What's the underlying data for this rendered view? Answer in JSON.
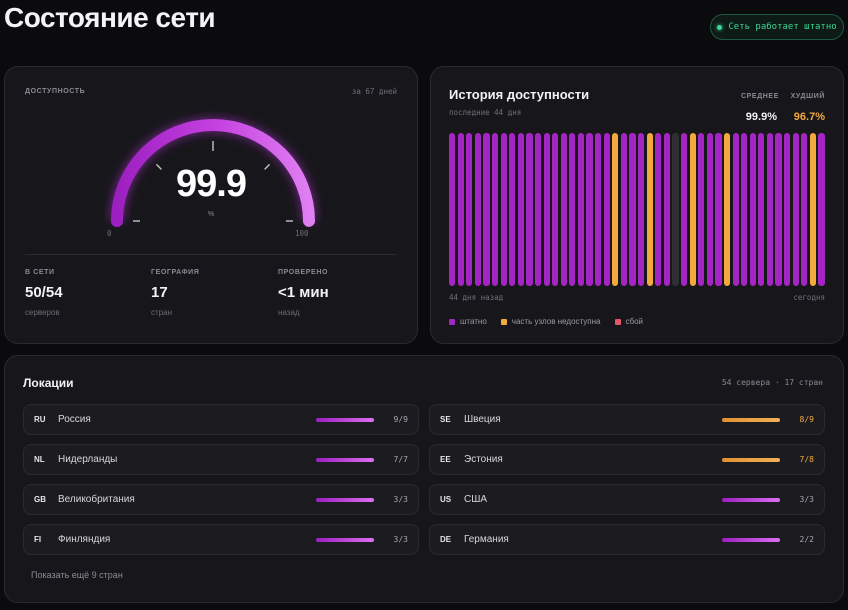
{
  "page": {
    "title": "Состояние сети",
    "status": "Сеть работает штатно"
  },
  "availability": {
    "label": "ДОСТУПНОСТЬ",
    "period": "за 67 дней",
    "value": "99.9",
    "unit": "%",
    "gauge_fraction": 0.999,
    "gauge_min": "0",
    "gauge_max": "100",
    "stats": [
      {
        "label": "В СЕТИ",
        "value": "50/54",
        "sub": "серверов"
      },
      {
        "label": "ГЕОГРАФИЯ",
        "value": "17",
        "sub": "стран"
      },
      {
        "label": "ПРОВЕРЕНО",
        "value": "<1 мин",
        "sub": "назад"
      }
    ]
  },
  "history": {
    "title": "История доступности",
    "subtitle": "последние 44 дня",
    "avg_label": "СРЕДНЕЕ",
    "avg_value": "99.9%",
    "worst_label": "ХУДШИЙ",
    "worst_value": "96.7%",
    "from_label": "44 дня назад",
    "to_label": "сегодня",
    "days": [
      "ok",
      "ok",
      "ok",
      "ok",
      "ok",
      "ok",
      "ok",
      "ok",
      "ok",
      "ok",
      "ok",
      "ok",
      "ok",
      "ok",
      "ok",
      "ok",
      "ok",
      "ok",
      "ok",
      "partial",
      "ok",
      "ok",
      "ok",
      "partial",
      "ok",
      "ok",
      "nodata",
      "ok",
      "partial",
      "ok",
      "ok",
      "ok",
      "partial",
      "ok",
      "ok",
      "ok",
      "ok",
      "ok",
      "ok",
      "ok",
      "ok",
      "ok",
      "partial",
      "ok"
    ],
    "legend": [
      {
        "key": "ok",
        "label": "штатно",
        "color": "#a524c4"
      },
      {
        "key": "partial",
        "label": "часть узлов недоступна",
        "color": "#f2a93e"
      },
      {
        "key": "fail",
        "label": "сбой",
        "color": "#e5556a"
      }
    ]
  },
  "colors": {
    "ok": "#a524c4",
    "partial": "#f2a93e",
    "nodata": "#2e2e33",
    "fail": "#e5556a",
    "status_green": "#3bd695"
  },
  "locations": {
    "title": "Локации",
    "summary": "54 сервера · 17 стран",
    "show_more": "Показать ещё 9 стран",
    "items": [
      {
        "code": "RU",
        "name": "Россия",
        "count": "9/9",
        "ratio": 1.0
      },
      {
        "code": "SE",
        "name": "Швеция",
        "count": "8/9",
        "ratio": 0.889
      },
      {
        "code": "NL",
        "name": "Нидерланды",
        "count": "7/7",
        "ratio": 1.0
      },
      {
        "code": "EE",
        "name": "Эстония",
        "count": "7/8",
        "ratio": 0.875
      },
      {
        "code": "GB",
        "name": "Великобритания",
        "count": "3/3",
        "ratio": 1.0
      },
      {
        "code": "US",
        "name": "США",
        "count": "3/3",
        "ratio": 1.0
      },
      {
        "code": "FI",
        "name": "Финляндия",
        "count": "3/3",
        "ratio": 1.0
      },
      {
        "code": "DE",
        "name": "Германия",
        "count": "2/2",
        "ratio": 1.0
      }
    ]
  }
}
